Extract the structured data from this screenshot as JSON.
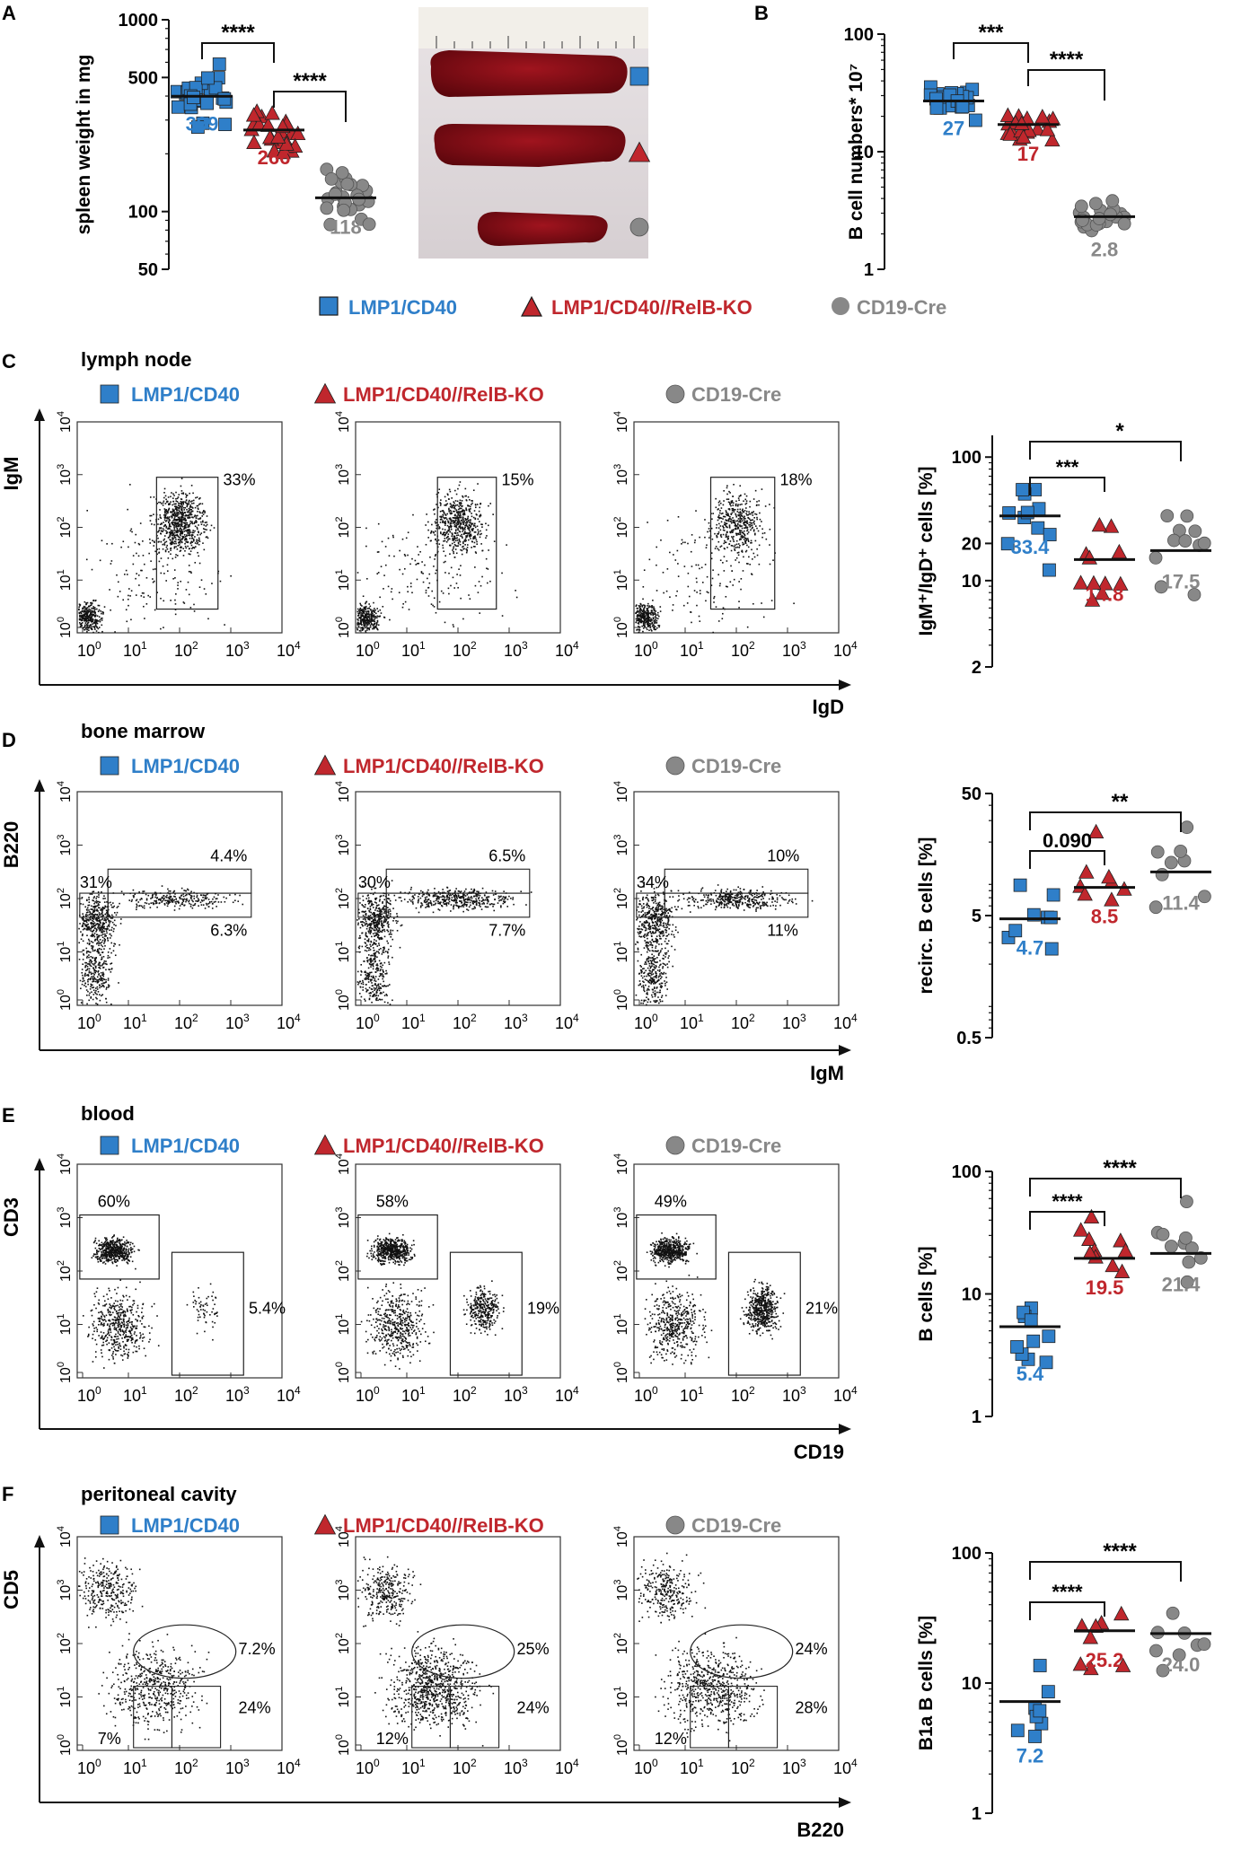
{
  "colors": {
    "blue": "#2f7fc9",
    "red": "#c0272d",
    "gray": "#888888",
    "black": "#111111"
  },
  "panels": {
    "A": "A",
    "B": "B",
    "C": "C",
    "D": "D",
    "E": "E",
    "F": "F"
  },
  "legend": {
    "lmp1": "LMP1/CD40",
    "relb": "LMP1/CD40//RelB-KO",
    "cd19": "CD19-Cre"
  },
  "sections": {
    "C": "lymph node",
    "D": "bone marrow",
    "E": "blood",
    "F": "peritoneal cavity"
  },
  "flow": {
    "tick_exps": [
      "0",
      "1",
      "2",
      "3",
      "4"
    ],
    "C": {
      "xlabel": "IgD",
      "ylabel": "IgM",
      "gates": [
        "33%",
        "15%",
        "18%"
      ]
    },
    "D": {
      "xlabel": "IgM",
      "ylabel": "B220",
      "gates": [
        [
          "31%",
          "4.4%",
          "6.3%"
        ],
        [
          "30%",
          "6.5%",
          "7.7%"
        ],
        [
          "34%",
          "10%",
          "11%"
        ]
      ]
    },
    "E": {
      "xlabel": "CD19",
      "ylabel": "CD3",
      "gates": [
        [
          "60%",
          "5.4%"
        ],
        [
          "58%",
          "19%"
        ],
        [
          "49%",
          "21%"
        ]
      ]
    },
    "F": {
      "xlabel": "B220",
      "ylabel": "CD5",
      "gates": [
        [
          "7.2%",
          "24%",
          "7%"
        ],
        [
          "25%",
          "24%",
          "12%"
        ],
        [
          "24%",
          "28%",
          "12%"
        ]
      ]
    }
  },
  "photo_markers": [
    "square",
    "triangle",
    "circle"
  ],
  "chart_data": [
    {
      "panel": "A",
      "type": "scatter",
      "scale": "log",
      "ylabel": "spleen weight in mg",
      "yticks": [
        "1000",
        "500",
        "100",
        "50"
      ],
      "ylim": [
        50,
        1000
      ],
      "groups": [
        {
          "label": "399",
          "color": "blue",
          "mean": 399
        },
        {
          "label": "266",
          "color": "red",
          "mean": 266
        },
        {
          "label": "118",
          "color": "gray",
          "mean": 118
        }
      ],
      "sig": [
        "****",
        "****"
      ]
    },
    {
      "panel": "B",
      "type": "scatter",
      "scale": "log",
      "ylabel": "B cell numbers* 10⁷",
      "yticks": [
        "100",
        "10",
        "1"
      ],
      "ylim": [
        1,
        100
      ],
      "groups": [
        {
          "label": "27",
          "color": "blue",
          "mean": 27
        },
        {
          "label": "17",
          "color": "red",
          "mean": 17
        },
        {
          "label": "2.8",
          "color": "gray",
          "mean": 2.8
        }
      ],
      "sig": [
        "***",
        "****"
      ]
    },
    {
      "panel": "C",
      "type": "scatter",
      "scale": "log",
      "ylabel": "IgM⁺/IgD⁺ cells [%]",
      "yticks": [
        "100",
        "20",
        "10",
        "2"
      ],
      "ylim": [
        2,
        150
      ],
      "groups": [
        {
          "label": "33.4",
          "color": "blue",
          "mean": 33.4
        },
        {
          "label": "14.8",
          "color": "red",
          "mean": 14.8
        },
        {
          "label": "17.5",
          "color": "gray",
          "mean": 17.5
        }
      ],
      "sig": [
        "***",
        "*"
      ]
    },
    {
      "panel": "D",
      "type": "scatter",
      "scale": "log",
      "ylabel": "recirc. B cells [%]",
      "yticks": [
        "50",
        "5",
        "0.5"
      ],
      "ylim": [
        0.5,
        50
      ],
      "groups": [
        {
          "label": "4.7",
          "color": "blue",
          "mean": 4.7
        },
        {
          "label": "8.5",
          "color": "red",
          "mean": 8.5
        },
        {
          "label": "11.4",
          "color": "gray",
          "mean": 11.4
        }
      ],
      "sig": [
        "0.090",
        "**"
      ]
    },
    {
      "panel": "E",
      "type": "scatter",
      "scale": "log",
      "ylabel": "B cells [%]",
      "yticks": [
        "100",
        "10",
        "1"
      ],
      "ylim": [
        1,
        100
      ],
      "groups": [
        {
          "label": "5.4",
          "color": "blue",
          "mean": 5.4
        },
        {
          "label": "19.5",
          "color": "red",
          "mean": 19.5
        },
        {
          "label": "21.4",
          "color": "gray",
          "mean": 21.4
        }
      ],
      "sig": [
        "****",
        "****"
      ]
    },
    {
      "panel": "F",
      "type": "scatter",
      "scale": "log",
      "ylabel": "B1a B cells [%]",
      "yticks": [
        "100",
        "10",
        "1"
      ],
      "ylim": [
        1,
        100
      ],
      "groups": [
        {
          "label": "7.2",
          "color": "blue",
          "mean": 7.2
        },
        {
          "label": "25.2",
          "color": "red",
          "mean": 25.2
        },
        {
          "label": "24.0",
          "color": "gray",
          "mean": 24.0
        }
      ],
      "sig": [
        "****",
        "****"
      ]
    }
  ]
}
